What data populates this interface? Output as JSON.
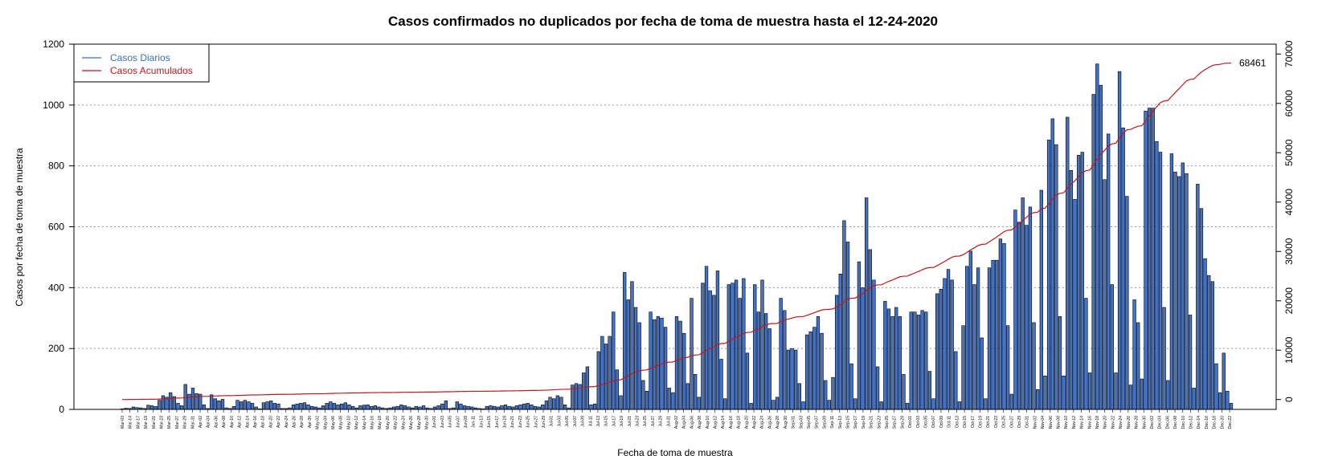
{
  "chart_data": {
    "type": "bar",
    "title": "Casos confirmados no duplicados por fecha de toma de muestra hasta el 12-24-2020",
    "xlabel": "Fecha de toma de muestra",
    "ylabel": "Casos por fecha de toma de muestra",
    "ylim": [
      0,
      1200
    ],
    "y_ticks": [
      0,
      200,
      400,
      600,
      800,
      1000,
      1200
    ],
    "y2lim": [
      -2000,
      72000
    ],
    "y2_ticks": [
      0,
      10000,
      20000,
      30000,
      40000,
      50000,
      60000,
      70000
    ],
    "grid": "horizontal-dotted",
    "legend_position": "top-left",
    "legend": [
      {
        "label": "Casos Diarios",
        "color": "#3a6fb0"
      },
      {
        "label": "Casos Acumulados",
        "color": "#c0181d"
      }
    ],
    "bar_color": "#4472c4",
    "line_color": "#c0181d",
    "end_value_label": "68461",
    "x_labels": [
      "Mar-03",
      "Mar-14",
      "Mar-17",
      "Mar-19",
      "Mar-21",
      "Mar-23",
      "Mar-25",
      "Mar-27",
      "Mar-29",
      "Mar-31",
      "Apr-02",
      "Apr-04",
      "Apr-06",
      "Apr-08",
      "Apr-10",
      "Apr-12",
      "Apr-14",
      "Apr-16",
      "Apr-18",
      "Apr-20",
      "Apr-22",
      "Apr-24",
      "Apr-26",
      "Apr-28",
      "Apr-30",
      "May-02",
      "May-04",
      "May-06",
      "May-08",
      "May-10",
      "May-12",
      "May-14",
      "May-16",
      "May-18",
      "May-20",
      "May-22",
      "May-24",
      "May-26",
      "May-28",
      "May-30",
      "Jun-01",
      "Jun-03",
      "Jun-05",
      "Jun-07",
      "Jun-09",
      "Jun-11",
      "Jun-13",
      "Jun-15",
      "Jun-17",
      "Jun-19",
      "Jun-21",
      "Jun-23",
      "Jun-25",
      "Jun-27",
      "Jun-29",
      "Jul-01",
      "Jul-03",
      "Jul-05",
      "Jul-07",
      "Jul-09",
      "Jul-11",
      "Jul-13",
      "Jul-15",
      "Jul-17",
      "Jul-19",
      "Jul-21",
      "Jul-23",
      "Jul-25",
      "Jul-27",
      "Jul-29",
      "Jul-31",
      "Aug-02",
      "Aug-04",
      "Aug-06",
      "Aug-08",
      "Aug-10",
      "Aug-12",
      "Aug-14",
      "Aug-16",
      "Aug-18",
      "Aug-20",
      "Aug-22",
      "Aug-24",
      "Aug-26",
      "Aug-28",
      "Aug-30",
      "Sep-01",
      "Sep-03",
      "Sep-05",
      "Sep-07",
      "Sep-09",
      "Sep-11",
      "Sep-13",
      "Sep-15",
      "Sep-17",
      "Sep-19",
      "Sep-21",
      "Sep-23",
      "Sep-25",
      "Sep-27",
      "Sep-29",
      "Oct-01",
      "Oct-03",
      "Oct-05",
      "Oct-07",
      "Oct-09",
      "Oct-11",
      "Oct-13",
      "Oct-15",
      "Oct-17",
      "Oct-19",
      "Oct-21",
      "Oct-23",
      "Oct-25",
      "Oct-27",
      "Oct-29",
      "Oct-31",
      "Nov-02",
      "Nov-04",
      "Nov-06",
      "Nov-08",
      "Nov-10",
      "Nov-12",
      "Nov-14",
      "Nov-16",
      "Nov-18",
      "Nov-20",
      "Nov-22",
      "Nov-24",
      "Nov-26",
      "Nov-28",
      "Nov-30",
      "Dec-02",
      "Dec-04",
      "Dec-06",
      "Dec-08",
      "Dec-10",
      "Dec-12",
      "Dec-14",
      "Dec-16",
      "Dec-18",
      "Dec-20",
      "Dec-22"
    ],
    "values": [
      2,
      4,
      3,
      8,
      6,
      5,
      3,
      14,
      12,
      10,
      30,
      45,
      40,
      55,
      42,
      20,
      12,
      82,
      50,
      70,
      52,
      50,
      15,
      3,
      48,
      35,
      28,
      33,
      5,
      3,
      10,
      30,
      25,
      30,
      25,
      20,
      8,
      2,
      22,
      25,
      28,
      20,
      18,
      3,
      3,
      5,
      15,
      18,
      20,
      22,
      15,
      10,
      8,
      5,
      12,
      20,
      25,
      20,
      15,
      18,
      22,
      15,
      10,
      5,
      12,
      14,
      15,
      10,
      12,
      8,
      5,
      3,
      5,
      8,
      10,
      15,
      12,
      8,
      5,
      10,
      8,
      12,
      5,
      3,
      8,
      12,
      18,
      28,
      3,
      5,
      25,
      18,
      12,
      10,
      8,
      5,
      3,
      2,
      10,
      12,
      10,
      8,
      12,
      15,
      10,
      8,
      12,
      15,
      18,
      20,
      15,
      10,
      8,
      15,
      28,
      40,
      35,
      45,
      40,
      15,
      5,
      80,
      85,
      82,
      120,
      140,
      15,
      18,
      190,
      240,
      215,
      240,
      320,
      130,
      45,
      450,
      360,
      420,
      335,
      285,
      95,
      60,
      320,
      295,
      305,
      300,
      270,
      70,
      55,
      305,
      290,
      250,
      85,
      365,
      115,
      40,
      415,
      470,
      390,
      375,
      455,
      165,
      35,
      410,
      415,
      425,
      365,
      430,
      185,
      20,
      410,
      320,
      425,
      315,
      265,
      30,
      40,
      365,
      325,
      195,
      200,
      195,
      85,
      25,
      245,
      255,
      270,
      305,
      250,
      95,
      30,
      105,
      375,
      445,
      620,
      550,
      150,
      35,
      485,
      400,
      695,
      525,
      425,
      140,
      25,
      355,
      330,
      305,
      335,
      305,
      115,
      20,
      320,
      320,
      310,
      325,
      320,
      125,
      35,
      380,
      395,
      430,
      460,
      425,
      190,
      25,
      275,
      470,
      520,
      410,
      465,
      235,
      35,
      465,
      490,
      490,
      560,
      545,
      275,
      50,
      655,
      615,
      695,
      605,
      665,
      285,
      65,
      720,
      110,
      885,
      955,
      870,
      305,
      110,
      960,
      785,
      690,
      835,
      845,
      365,
      120,
      1035,
      1135,
      1065,
      755,
      905,
      410,
      120,
      1110,
      925,
      700,
      80,
      360,
      285,
      100,
      980,
      990,
      990,
      880,
      845,
      335,
      95,
      840,
      780,
      765,
      810,
      775,
      310,
      70,
      740,
      660,
      495,
      440,
      420,
      150,
      55,
      185,
      60,
      20
    ]
  }
}
